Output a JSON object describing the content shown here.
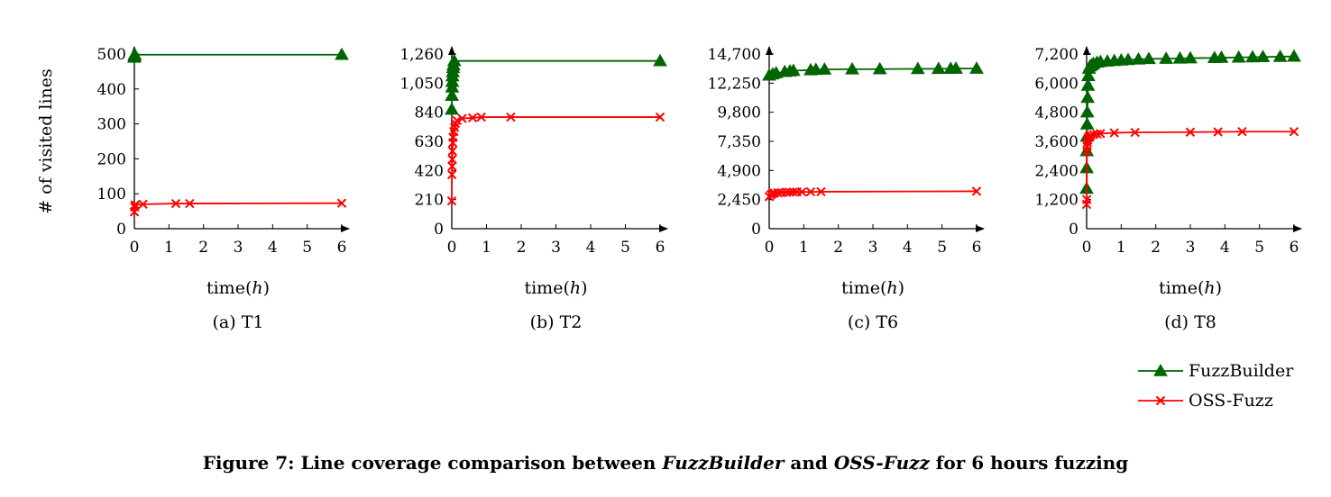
{
  "figure": {
    "caption_prefix": "Figure 7: Line coverage comparison between ",
    "caption_em1": "FuzzBuilder",
    "caption_mid": " and ",
    "caption_em2": "OSS-Fuzz",
    "caption_suffix": " for 6 hours fuzzing"
  },
  "legend": {
    "position": "bottom-right",
    "entries": [
      {
        "name": "FuzzBuilder",
        "color": "#006400",
        "marker": "triangle"
      },
      {
        "name": "OSS-Fuzz",
        "color": "#ff0000",
        "marker": "cross"
      }
    ]
  },
  "chart_data": [
    {
      "type": "line",
      "subcaption": "(a) T1",
      "xlabel": "time(h)",
      "ylabel": "# of visited lines",
      "xlim": [
        0,
        6
      ],
      "ylim": [
        0,
        500
      ],
      "xticks": [
        0,
        1,
        2,
        3,
        4,
        5,
        6
      ],
      "yticks": [
        0,
        100,
        200,
        300,
        400,
        500
      ],
      "ytick_labels": [
        "0",
        "100",
        "200",
        "300",
        "400",
        "500"
      ],
      "series": [
        {
          "name": "FuzzBuilder",
          "x": [
            0,
            0.005,
            0.01,
            6
          ],
          "y": [
            490,
            495,
            498,
            498
          ]
        },
        {
          "name": "OSS-Fuzz",
          "x": [
            0,
            0.01,
            0.02,
            0.25,
            1.2,
            1.6,
            6
          ],
          "y": [
            48,
            62,
            68,
            70,
            72,
            72,
            73
          ]
        }
      ]
    },
    {
      "type": "line",
      "subcaption": "(b) T2",
      "xlabel": "time(h)",
      "ylabel": "",
      "xlim": [
        0,
        6
      ],
      "ylim": [
        0,
        1260
      ],
      "xticks": [
        0,
        1,
        2,
        3,
        4,
        5,
        6
      ],
      "yticks": [
        0,
        210,
        420,
        630,
        840,
        1050,
        1260
      ],
      "ytick_labels": [
        "0",
        "210",
        "420",
        "630",
        "840",
        "1,050",
        "1,260"
      ],
      "series": [
        {
          "name": "FuzzBuilder",
          "x": [
            0,
            0.005,
            0.01,
            0.015,
            0.02,
            0.03,
            0.04,
            0.05,
            0.07,
            6
          ],
          "y": [
            860,
            960,
            1020,
            1060,
            1100,
            1130,
            1160,
            1180,
            1210,
            1210
          ]
        },
        {
          "name": "OSS-Fuzz",
          "x": [
            0,
            0.005,
            0.01,
            0.015,
            0.02,
            0.03,
            0.04,
            0.06,
            0.08,
            0.1,
            0.15,
            0.3,
            0.6,
            0.85,
            1.7,
            6
          ],
          "y": [
            200,
            390,
            450,
            500,
            560,
            620,
            660,
            700,
            730,
            760,
            780,
            795,
            800,
            805,
            805,
            805
          ]
        }
      ]
    },
    {
      "type": "line",
      "subcaption": "(c) T6",
      "xlabel": "time(h)",
      "ylabel": "",
      "xlim": [
        0,
        6
      ],
      "ylim": [
        0,
        14700
      ],
      "xticks": [
        0,
        1,
        2,
        3,
        4,
        5,
        6
      ],
      "yticks": [
        0,
        2450,
        4900,
        7350,
        9800,
        12250,
        14700
      ],
      "ytick_labels": [
        "0",
        "2,450",
        "4,900",
        "7,350",
        "9,800",
        "12,250",
        "14,700"
      ],
      "series": [
        {
          "name": "FuzzBuilder",
          "x": [
            0,
            0.1,
            0.2,
            0.45,
            0.6,
            0.7,
            1.2,
            1.35,
            1.6,
            2.4,
            3.2,
            4.3,
            4.9,
            5.25,
            5.4,
            6
          ],
          "y": [
            12900,
            13000,
            13100,
            13200,
            13250,
            13300,
            13350,
            13380,
            13400,
            13420,
            13430,
            13450,
            13460,
            13470,
            13480,
            13480
          ]
        },
        {
          "name": "OSS-Fuzz",
          "x": [
            0,
            0.05,
            0.1,
            0.15,
            0.25,
            0.35,
            0.5,
            0.6,
            0.7,
            0.8,
            0.95,
            1.2,
            1.5,
            6
          ],
          "y": [
            2700,
            2850,
            2950,
            3000,
            3020,
            3040,
            3060,
            3070,
            3080,
            3090,
            3095,
            3100,
            3110,
            3150
          ]
        }
      ]
    },
    {
      "type": "line",
      "subcaption": "(d) T8",
      "xlabel": "time(h)",
      "ylabel": "",
      "xlim": [
        0,
        6
      ],
      "ylim": [
        0,
        7200
      ],
      "xticks": [
        0,
        1,
        2,
        3,
        4,
        5,
        6
      ],
      "yticks": [
        0,
        1200,
        2400,
        3600,
        4800,
        6000,
        7200
      ],
      "ytick_labels": [
        "0",
        "1,200",
        "2,400",
        "3,600",
        "4,800",
        "6,000",
        "7,200"
      ],
      "series": [
        {
          "name": "FuzzBuilder",
          "x": [
            0,
            0.003,
            0.006,
            0.01,
            0.015,
            0.02,
            0.03,
            0.04,
            0.05,
            0.07,
            0.1,
            0.15,
            0.2,
            0.3,
            0.4,
            0.6,
            0.8,
            1.0,
            1.2,
            1.5,
            1.8,
            2.3,
            2.7,
            3.0,
            3.7,
            3.9,
            4.4,
            4.8,
            5.1,
            5.6,
            6
          ],
          "y": [
            1650,
            2500,
            3200,
            3800,
            4300,
            4800,
            5400,
            5900,
            6300,
            6600,
            6700,
            6750,
            6800,
            6850,
            6880,
            6900,
            6920,
            6940,
            6960,
            6980,
            7000,
            7010,
            7020,
            7030,
            7040,
            7050,
            7060,
            7070,
            7080,
            7090,
            7100
          ]
        },
        {
          "name": "OSS-Fuzz",
          "x": [
            0,
            0.005,
            0.01,
            0.015,
            0.02,
            0.03,
            0.05,
            0.08,
            0.12,
            0.2,
            0.3,
            0.4,
            0.8,
            1.4,
            3.0,
            3.8,
            4.5,
            6
          ],
          "y": [
            1000,
            1200,
            3200,
            3400,
            3550,
            3650,
            3750,
            3800,
            3850,
            3880,
            3900,
            3920,
            3950,
            3970,
            3980,
            3990,
            4000,
            4000
          ]
        }
      ]
    }
  ]
}
